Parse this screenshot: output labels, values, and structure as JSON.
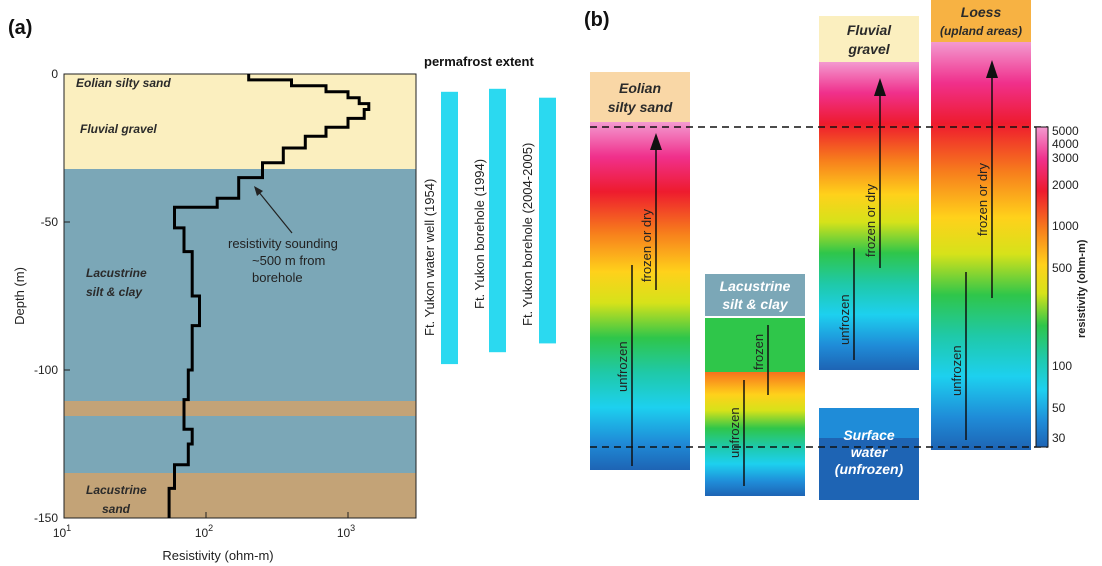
{
  "panel_a": {
    "letter": "(a)",
    "xlabel": "Resistivity (ohm-m)",
    "ylabel": "Depth (m)",
    "x_ticks": [
      {
        "value": 10,
        "base": "10",
        "exp": "1"
      },
      {
        "value": 100,
        "base": "10",
        "exp": "2"
      },
      {
        "value": 1000,
        "base": "10",
        "exp": "3"
      }
    ],
    "y_ticks": [
      "0",
      "-50",
      "-100",
      "-150"
    ],
    "layers": {
      "eolian": "Eolian silty sand",
      "fluvial": "Fluvial gravel",
      "lacustrine_silt_1": "Lacustrine",
      "lacustrine_silt_2": "silt & clay",
      "lacustrine_sand_1": "Lacustrine",
      "lacustrine_sand_2": "sand"
    },
    "annotation": {
      "line1": "resistivity sounding",
      "line2": "~500 m from",
      "line3": "borehole"
    },
    "permafrost": {
      "title": "permafrost extent",
      "bars": [
        {
          "label": "Ft. Yukon water well (1954)",
          "top_m": -6,
          "bottom_m": -98
        },
        {
          "label": "Ft. Yukon borehole (1994)",
          "top_m": -5,
          "bottom_m": -94
        },
        {
          "label": "Ft. Yukon borehole (2004-2005)",
          "top_m": -8,
          "bottom_m": -91
        }
      ]
    }
  },
  "panel_b": {
    "letter": "(b)",
    "columns": [
      {
        "label_1": "Eolian",
        "label_2": "silty sand",
        "frozen": "frozen or dry",
        "unfrozen": "unfrozen"
      },
      {
        "label_1": "Lacustrine",
        "label_2": "silt & clay",
        "frozen": "frozen",
        "unfrozen": "unfrozen"
      },
      {
        "label_1": "Fluvial",
        "label_2": "gravel",
        "frozen": "frozen or dry",
        "unfrozen": "unfrozen"
      },
      {
        "label_1": "Loess",
        "label_2": "(upland areas)",
        "frozen": "frozen or dry",
        "unfrozen": "unfrozen"
      }
    ],
    "surface_water": {
      "line1": "Surface",
      "line2": "water",
      "line3": "(unfrozen)"
    },
    "colorbar": {
      "label": "resistivity (ohm-m)",
      "ticks": [
        "5000",
        "4000",
        "3000",
        "2000",
        "1000",
        "500",
        "100",
        "50",
        "30"
      ]
    }
  },
  "colors": {
    "sand_beige": "#fbefbf",
    "silt_blue": "#7ba7b7",
    "sand_brown": "#c3a377",
    "permafrost_cyan": "#2bd9f0",
    "layer_label_orange": "#f5c98a"
  },
  "chart_data": {
    "type": "line",
    "title": "",
    "xlabel": "Resistivity (ohm-m)",
    "ylabel": "Depth (m)",
    "x_scale": "log",
    "xlim": [
      10,
      3000
    ],
    "ylim": [
      -150,
      0
    ],
    "series": [
      {
        "points": [
          [
            200,
            0
          ],
          [
            200,
            -2
          ],
          [
            400,
            -2
          ],
          [
            400,
            -4
          ],
          [
            700,
            -4
          ],
          [
            700,
            -6
          ],
          [
            1000,
            -6
          ],
          [
            1000,
            -8
          ],
          [
            1200,
            -8
          ],
          [
            1200,
            -10
          ],
          [
            1400,
            -10
          ],
          [
            1400,
            -12
          ],
          [
            1300,
            -12
          ],
          [
            1300,
            -15
          ],
          [
            1000,
            -15
          ],
          [
            1000,
            -18
          ],
          [
            700,
            -18
          ],
          [
            700,
            -21
          ],
          [
            500,
            -21
          ],
          [
            500,
            -25
          ],
          [
            350,
            -25
          ],
          [
            350,
            -30
          ],
          [
            250,
            -30
          ],
          [
            250,
            -35
          ],
          [
            170,
            -35
          ],
          [
            170,
            -42
          ],
          [
            120,
            -42
          ],
          [
            120,
            -45
          ],
          [
            60,
            -45
          ],
          [
            60,
            -52
          ],
          [
            70,
            -52
          ],
          [
            70,
            -60
          ],
          [
            80,
            -60
          ],
          [
            80,
            -75
          ],
          [
            90,
            -75
          ],
          [
            90,
            -85
          ],
          [
            80,
            -85
          ],
          [
            80,
            -100
          ],
          [
            75,
            -100
          ],
          [
            75,
            -110
          ],
          [
            70,
            -110
          ],
          [
            70,
            -120
          ],
          [
            80,
            -120
          ],
          [
            80,
            -125
          ],
          [
            75,
            -125
          ],
          [
            75,
            -132
          ],
          [
            60,
            -132
          ],
          [
            60,
            -140
          ],
          [
            55,
            -140
          ],
          [
            55,
            -150
          ]
        ]
      }
    ]
  }
}
